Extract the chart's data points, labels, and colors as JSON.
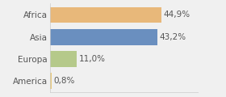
{
  "categories": [
    "America",
    "Europa",
    "Asia",
    "Africa"
  ],
  "values": [
    0.8,
    11.0,
    43.2,
    44.9
  ],
  "labels": [
    "0,8%",
    "11,0%",
    "43,2%",
    "44,9%"
  ],
  "bar_colors": [
    "#e8c97a",
    "#b5c98a",
    "#6a8fbf",
    "#e8b87a"
  ],
  "background_color": "#f0f0f0",
  "xlim": [
    0,
    60
  ],
  "bar_height": 0.72,
  "label_fontsize": 7.5,
  "tick_fontsize": 7.5
}
